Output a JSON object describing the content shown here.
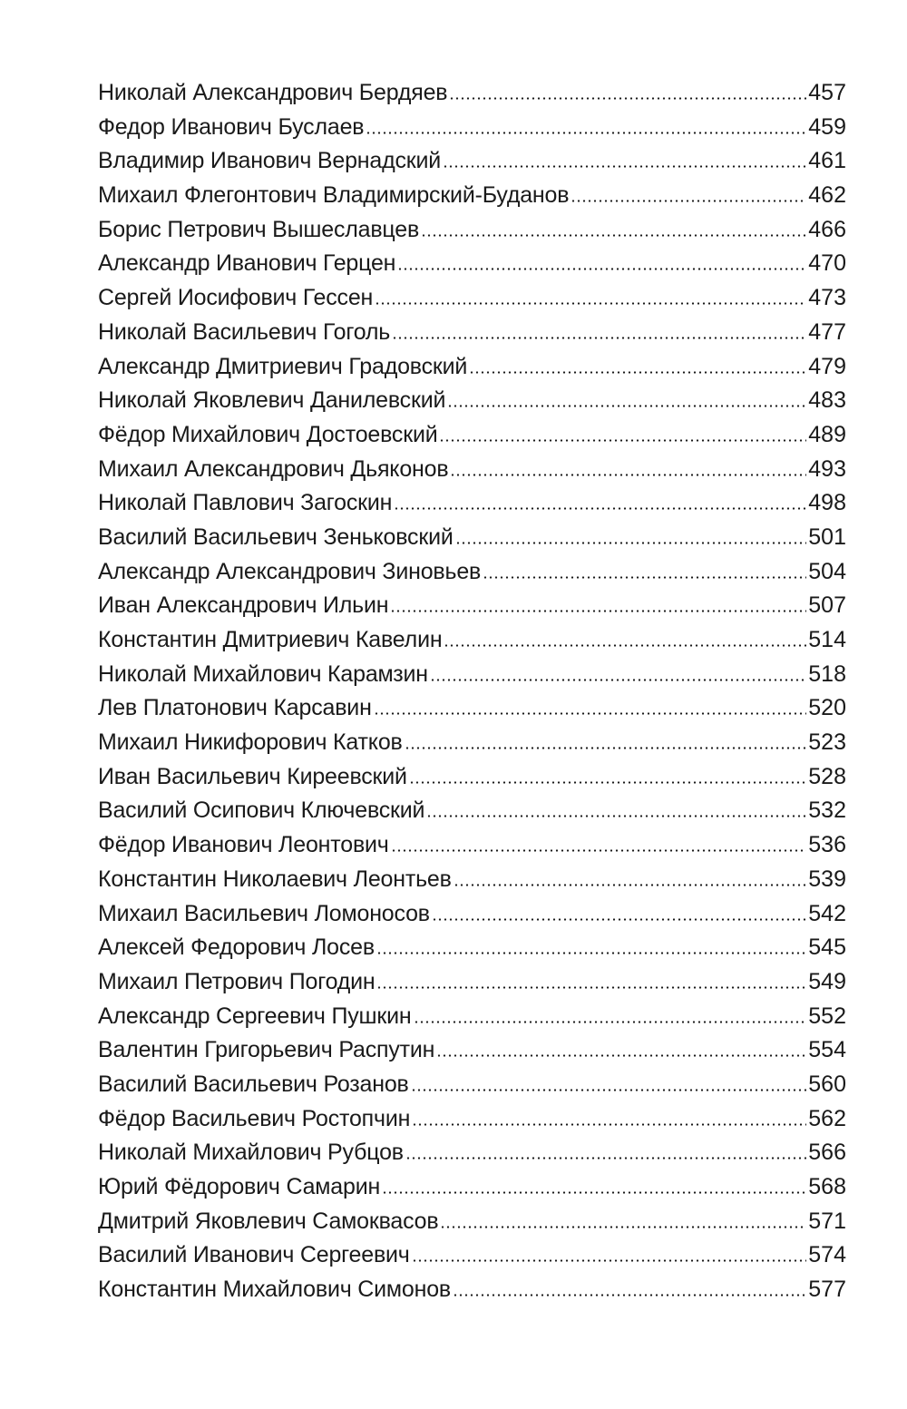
{
  "entries": [
    {
      "name": "Николай Александрович Бердяев",
      "page": "457"
    },
    {
      "name": "Федор Иванович Буслаев",
      "page": "459"
    },
    {
      "name": "Владимир Иванович Вернадский",
      "page": "461"
    },
    {
      "name": "Михаил Флегонтович Владимирский-Буданов",
      "page": "462"
    },
    {
      "name": "Борис Петрович Вышеславцев",
      "page": "466"
    },
    {
      "name": "Александр Иванович Герцен",
      "page": "470"
    },
    {
      "name": "Сергей Иосифович Гессен",
      "page": "473"
    },
    {
      "name": "Николай Васильевич Гоголь",
      "page": "477"
    },
    {
      "name": "Александр Дмитриевич Градовский",
      "page": "479"
    },
    {
      "name": "Николай Яковлевич Данилевский",
      "page": "483"
    },
    {
      "name": "Фёдор Михайлович Достоевский",
      "page": "489"
    },
    {
      "name": "Михаил Александрович Дьяконов",
      "page": "493"
    },
    {
      "name": "Николай Павлович Загоскин",
      "page": "498"
    },
    {
      "name": "Василий Васильевич Зеньковский",
      "page": "501"
    },
    {
      "name": "Александр Александрович Зиновьев",
      "page": "504"
    },
    {
      "name": "Иван Александрович Ильин",
      "page": "507"
    },
    {
      "name": "Константин Дмитриевич Кавелин",
      "page": "514"
    },
    {
      "name": "Николай Михайлович Карамзин",
      "page": "518"
    },
    {
      "name": "Лев Платонович Карсавин",
      "page": "520"
    },
    {
      "name": "Михаил Никифорович Катков",
      "page": "523"
    },
    {
      "name": "Иван Васильевич Киреевский",
      "page": "528"
    },
    {
      "name": "Василий Осипович Ключевский",
      "page": "532"
    },
    {
      "name": "Фёдор Иванович Леонтович",
      "page": "536"
    },
    {
      "name": "Константин Николаевич Леонтьев",
      "page": "539"
    },
    {
      "name": "Михаил Васильевич Ломоносов",
      "page": "542"
    },
    {
      "name": "Алексей Федорович Лосев",
      "page": "545"
    },
    {
      "name": "Михаил Петрович Погодин",
      "page": "549"
    },
    {
      "name": "Александр Сергеевич Пушкин",
      "page": "552"
    },
    {
      "name": "Валентин Григорьевич Распутин",
      "page": "554"
    },
    {
      "name": "Василий Васильевич Розанов",
      "page": "560"
    },
    {
      "name": "Фёдор Васильевич Ростопчин",
      "page": "562"
    },
    {
      "name": "Николай Михайлович Рубцов",
      "page": "566"
    },
    {
      "name": "Юрий Фёдорович Самарин",
      "page": "568"
    },
    {
      "name": "Дмитрий Яковлевич Самоквасов",
      "page": "571"
    },
    {
      "name": "Василий Иванович Сергеевич",
      "page": "574"
    },
    {
      "name": "Константин Михайлович Симонов",
      "page": "577"
    }
  ]
}
